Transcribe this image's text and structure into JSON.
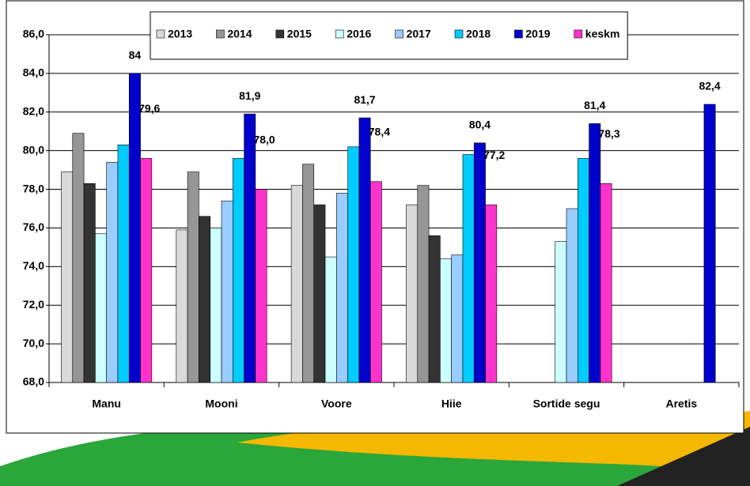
{
  "chart_data": {
    "type": "bar",
    "categories": [
      "Manu",
      "Mooni",
      "Voore",
      "Hiie",
      "Sortide segu",
      "Aretis"
    ],
    "series": [
      {
        "name": "2013",
        "color": "#d9d9d9",
        "values": [
          78.9,
          75.9,
          78.2,
          77.2,
          null,
          null
        ]
      },
      {
        "name": "2014",
        "color": "#969696",
        "values": [
          80.9,
          78.9,
          79.3,
          78.2,
          null,
          null
        ]
      },
      {
        "name": "2015",
        "color": "#333333",
        "values": [
          78.3,
          76.6,
          77.2,
          75.6,
          null,
          null
        ]
      },
      {
        "name": "2016",
        "color": "#ccffff",
        "values": [
          75.7,
          76.0,
          74.5,
          74.4,
          75.3,
          null
        ]
      },
      {
        "name": "2017",
        "color": "#99ccff",
        "values": [
          79.4,
          77.4,
          77.8,
          74.6,
          77.0,
          null
        ]
      },
      {
        "name": "2018",
        "color": "#00ccff",
        "values": [
          80.3,
          79.6,
          80.2,
          79.8,
          79.6,
          null
        ]
      },
      {
        "name": "2019",
        "color": "#0000cc",
        "values": [
          84.0,
          81.9,
          81.7,
          80.4,
          81.4,
          82.4
        ],
        "value_labels": [
          "84",
          "81,9",
          "81,7",
          "80,4",
          "81,4",
          "82,4"
        ]
      },
      {
        "name": "keskm",
        "color": "#ff33cc",
        "values": [
          79.6,
          78.0,
          78.4,
          77.2,
          78.3,
          null
        ],
        "value_labels": [
          "79,6",
          "78,0",
          "78,4",
          "77,2",
          "78,3",
          null
        ]
      }
    ],
    "ylim": [
      68,
      86
    ],
    "yticks": [
      {
        "value": 68,
        "label": "68,0"
      },
      {
        "value": 70,
        "label": "70,0"
      },
      {
        "value": 72,
        "label": "72,0"
      },
      {
        "value": 74,
        "label": "74,0"
      },
      {
        "value": 76,
        "label": "76,0"
      },
      {
        "value": 78,
        "label": "78,0"
      },
      {
        "value": 80,
        "label": "80,0"
      },
      {
        "value": 82,
        "label": "82,0"
      },
      {
        "value": 84,
        "label": "84,0"
      },
      {
        "value": 86,
        "label": "86,0"
      }
    ],
    "grid": true,
    "legend": "top"
  }
}
